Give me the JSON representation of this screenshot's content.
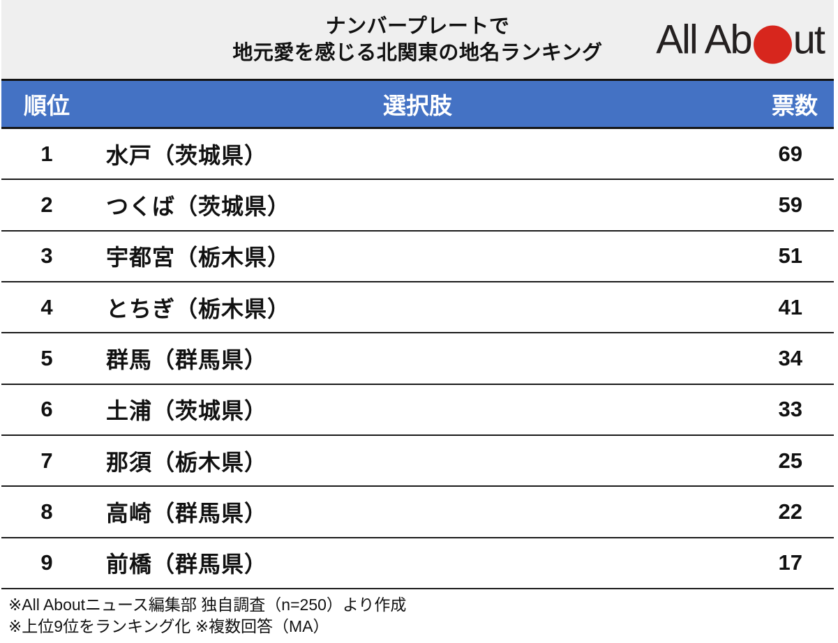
{
  "header": {
    "title_line1": "ナンバープレートで",
    "title_line2": "地元愛を感じる北関東の地名ランキング",
    "logo": {
      "name": "All About",
      "text_before_dot": "All Ab",
      "text_after_dot": "ut",
      "dot_color": "#d7261d",
      "text_color": "#242020"
    }
  },
  "table": {
    "header_bg_color": "#4472c4",
    "header_text_color": "#ffffff",
    "columns": {
      "rank": "順位",
      "choice": "選択肢",
      "votes": "票数"
    },
    "rows": [
      {
        "rank": "1",
        "choice": "水戸（茨城県）",
        "votes": "69"
      },
      {
        "rank": "2",
        "choice": "つくば（茨城県）",
        "votes": "59"
      },
      {
        "rank": "3",
        "choice": "宇都宮（栃木県）",
        "votes": "51"
      },
      {
        "rank": "4",
        "choice": "とちぎ（栃木県）",
        "votes": "41"
      },
      {
        "rank": "5",
        "choice": "群馬（群馬県）",
        "votes": "34"
      },
      {
        "rank": "6",
        "choice": "土浦（茨城県）",
        "votes": "33"
      },
      {
        "rank": "7",
        "choice": "那須（栃木県）",
        "votes": "25"
      },
      {
        "rank": "8",
        "choice": "高崎（群馬県）",
        "votes": "22"
      },
      {
        "rank": "9",
        "choice": "前橋（群馬県）",
        "votes": "17"
      }
    ]
  },
  "footnotes": {
    "line1": "※All Aboutニュース編集部 独自調査（n=250）より作成",
    "line2": "※上位9位をランキング化 ※複数回答（MA）"
  },
  "chart_data": {
    "type": "table",
    "title": "ナンバープレートで地元愛を感じる北関東の地名ランキング",
    "columns": [
      "順位",
      "選択肢",
      "票数"
    ],
    "categories": [
      "水戸（茨城県）",
      "つくば（茨城県）",
      "宇都宮（栃木県）",
      "とちぎ（栃木県）",
      "群馬（群馬県）",
      "土浦（茨城県）",
      "那須（栃木県）",
      "高崎（群馬県）",
      "前橋（群馬県）"
    ],
    "values": [
      69,
      59,
      51,
      41,
      34,
      33,
      25,
      22,
      17
    ],
    "ranks": [
      1,
      2,
      3,
      4,
      5,
      6,
      7,
      8,
      9
    ],
    "notes": [
      "※All Aboutニュース編集部 独自調査（n=250）より作成",
      "※上位9位をランキング化 ※複数回答（MA）"
    ],
    "sample_size": 250,
    "source": "All Aboutニュース編集部"
  }
}
